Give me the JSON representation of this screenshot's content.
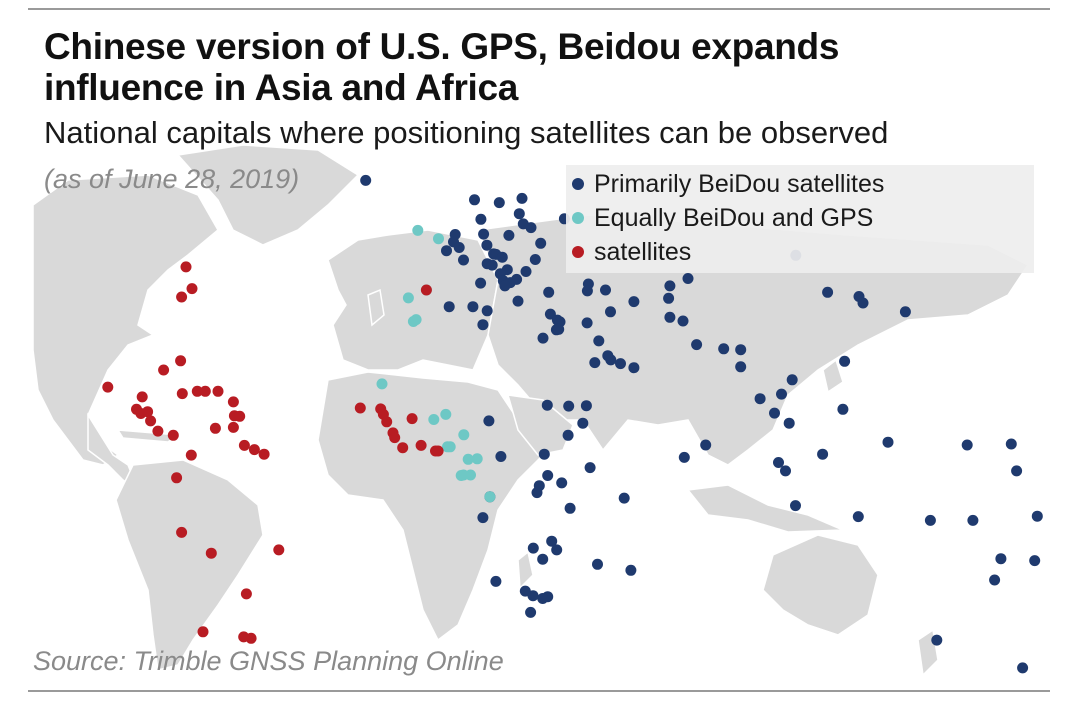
{
  "title": "Chinese version of U.S. GPS, Beidou expands influence in Asia and Africa",
  "subtitle": "National capitals where positioning satellites can be observed",
  "date_note": "(as of June 28, 2019)",
  "source": "Source: Trimble GNSS Planning Online",
  "colors": {
    "beidou": "#1f3a6e",
    "equal": "#6ec8c5",
    "gps": "#b81c23",
    "land": "#d9d9d9",
    "background": "#ffffff"
  },
  "chart_data": {
    "type": "scatter",
    "title": "Chinese version of U.S. GPS, Beidou expands influence in Asia and Africa",
    "subtitle": "National capitals where positioning satellites can be observed",
    "legend_placement": "top-right",
    "series": [
      {
        "name": "Primarily BeiDou satellites",
        "color": "#1f3a6e",
        "points": [
          [
            -21.9,
            64.1
          ],
          [
            10.7,
            59.9
          ],
          [
            18.1,
            59.3
          ],
          [
            24.9,
            60.2
          ],
          [
            37.6,
            55.8
          ],
          [
            12.6,
            55.7
          ],
          [
            24.1,
            56.9
          ],
          [
            25.3,
            54.7
          ],
          [
            27.6,
            53.9
          ],
          [
            21.0,
            52.2
          ],
          [
            13.4,
            52.5
          ],
          [
            4.9,
            52.4
          ],
          [
            4.4,
            50.8
          ],
          [
            6.1,
            49.6
          ],
          [
            2.3,
            48.9
          ],
          [
            7.4,
            46.9
          ],
          [
            14.4,
            50.1
          ],
          [
            16.4,
            48.2
          ],
          [
            17.1,
            48.1
          ],
          [
            19.0,
            47.5
          ],
          [
            14.5,
            46.1
          ],
          [
            16.0,
            45.8
          ],
          [
            20.5,
            44.8
          ],
          [
            26.1,
            44.4
          ],
          [
            30.5,
            50.5
          ],
          [
            28.9,
            47.0
          ],
          [
            18.4,
            43.9
          ],
          [
            19.3,
            42.4
          ],
          [
            21.4,
            42.0
          ],
          [
            19.8,
            41.3
          ],
          [
            23.3,
            42.7
          ],
          [
            12.5,
            41.9
          ],
          [
            14.5,
            35.9
          ],
          [
            10.2,
            36.8
          ],
          [
            3.1,
            36.8
          ],
          [
            13.2,
            32.9
          ],
          [
            23.7,
            38.0
          ],
          [
            33.4,
            35.2
          ],
          [
            32.9,
            39.9
          ],
          [
            35.5,
            33.9
          ],
          [
            36.3,
            33.5
          ],
          [
            35.2,
            31.8
          ],
          [
            35.9,
            31.9
          ],
          [
            31.2,
            30.0
          ],
          [
            44.4,
            33.3
          ],
          [
            44.8,
            41.7
          ],
          [
            44.5,
            40.2
          ],
          [
            49.9,
            40.4
          ],
          [
            58.4,
            37.9
          ],
          [
            69.2,
            41.3
          ],
          [
            74.6,
            42.9
          ],
          [
            68.8,
            38.6
          ],
          [
            69.2,
            34.5
          ],
          [
            73.1,
            33.7
          ],
          [
            77.2,
            28.6
          ],
          [
            85.3,
            27.7
          ],
          [
            90.4,
            27.5
          ],
          [
            90.4,
            23.8
          ],
          [
            51.4,
            35.7
          ],
          [
            47.9,
            29.4
          ],
          [
            50.6,
            26.2
          ],
          [
            51.5,
            25.3
          ],
          [
            54.4,
            24.5
          ],
          [
            58.4,
            23.6
          ],
          [
            46.7,
            24.7
          ],
          [
            44.2,
            15.4
          ],
          [
            43.1,
            11.6
          ],
          [
            38.9,
            15.3
          ],
          [
            32.5,
            15.5
          ],
          [
            38.7,
            9.0
          ],
          [
            45.3,
            2.0
          ],
          [
            36.8,
            -1.3
          ],
          [
            32.6,
            0.3
          ],
          [
            30.1,
            -1.9
          ],
          [
            29.4,
            -3.4
          ],
          [
            39.3,
            -6.8
          ],
          [
            33.8,
            -13.9
          ],
          [
            28.3,
            -15.4
          ],
          [
            35.3,
            -15.8
          ],
          [
            32.6,
            -25.9
          ],
          [
            31.1,
            -17.8
          ],
          [
            25.9,
            -24.7
          ],
          [
            28.2,
            -25.7
          ],
          [
            27.5,
            -29.3
          ],
          [
            31.1,
            -26.3
          ],
          [
            17.1,
            -22.6
          ],
          [
            13.2,
            -8.8
          ],
          [
            15.3,
            -4.3
          ],
          [
            18.6,
            4.4
          ],
          [
            15.0,
            12.1
          ],
          [
            31.6,
            4.9
          ],
          [
            47.5,
            -18.9
          ],
          [
            57.5,
            -20.2
          ],
          [
            55.5,
            -4.6
          ],
          [
            73.5,
            4.2
          ],
          [
            79.9,
            6.9
          ],
          [
            96.2,
            16.9
          ],
          [
            100.5,
            13.8
          ],
          [
            102.6,
            17.9
          ],
          [
            104.9,
            11.6
          ],
          [
            105.8,
            21.0
          ],
          [
            101.7,
            3.1
          ],
          [
            103.8,
            1.3
          ],
          [
            106.8,
            -6.2
          ],
          [
            114.9,
            4.9
          ],
          [
            121.0,
            14.6
          ],
          [
            125.6,
            -8.6
          ],
          [
            147.2,
            -9.4
          ],
          [
            116.4,
            39.9
          ],
          [
            106.9,
            47.9
          ],
          [
            125.8,
            39.0
          ],
          [
            127.0,
            37.6
          ],
          [
            139.7,
            35.7
          ],
          [
            121.5,
            25.0
          ],
          [
            134.5,
            7.5
          ],
          [
            158.2,
            6.9
          ],
          [
            171.4,
            7.1
          ],
          [
            173.0,
            1.3
          ],
          [
            159.9,
            -9.4
          ],
          [
            168.3,
            -17.7
          ],
          [
            166.4,
            -22.3
          ],
          [
            178.4,
            -18.1
          ],
          [
            179.2,
            -8.5
          ],
          [
            -175.2,
            -21.1
          ],
          [
            -171.8,
            -13.8
          ],
          [
            149.1,
            -35.3
          ],
          [
            174.8,
            -41.3
          ]
        ]
      },
      {
        "name": "Equally BeiDou and GPS",
        "color": "#6ec8c5",
        "points": [
          [
            -9.1,
            38.7
          ],
          [
            -3.7,
            40.4
          ],
          [
            -6.3,
            53.3
          ],
          [
            -0.1,
            51.5
          ],
          [
            -6.8,
            34.0
          ],
          [
            -7.6,
            33.6
          ],
          [
            -17.0,
            20.1
          ],
          [
            -1.5,
            12.4
          ],
          [
            2.1,
            13.5
          ],
          [
            2.6,
            6.5
          ],
          [
            3.4,
            6.5
          ],
          [
            7.5,
            9.1
          ],
          [
            11.5,
            3.9
          ],
          [
            8.8,
            3.8
          ],
          [
            9.5,
            0.4
          ],
          [
            6.7,
            0.3
          ],
          [
            15.3,
            -4.3
          ],
          [
            7.4,
            0.4
          ]
        ]
      },
      {
        "name": "satellites",
        "color": "#b81c23",
        "points": [
          [
            -73.9,
            40.7
          ],
          [
            -77.0,
            38.9
          ],
          [
            -75.7,
            45.4
          ],
          [
            -82.4,
            23.1
          ],
          [
            -77.3,
            25.1
          ],
          [
            -76.8,
            18.0
          ],
          [
            -72.3,
            18.5
          ],
          [
            -69.9,
            18.5
          ],
          [
            -66.1,
            18.5
          ],
          [
            -61.5,
            16.2
          ],
          [
            -61.2,
            13.2
          ],
          [
            -59.6,
            13.1
          ],
          [
            -61.5,
            10.7
          ],
          [
            -58.2,
            6.8
          ],
          [
            -55.2,
            5.9
          ],
          [
            -52.3,
            4.9
          ],
          [
            -66.9,
            10.5
          ],
          [
            -74.1,
            4.7
          ],
          [
            -78.5,
            -0.2
          ],
          [
            -77.0,
            -12.0
          ],
          [
            -68.1,
            -16.5
          ],
          [
            -57.6,
            -25.3
          ],
          [
            -56.2,
            -34.9
          ],
          [
            -58.4,
            -34.6
          ],
          [
            -70.6,
            -33.5
          ],
          [
            -47.9,
            -15.8
          ],
          [
            -99.1,
            19.4
          ],
          [
            -90.5,
            14.6
          ],
          [
            -89.2,
            13.7
          ],
          [
            -87.2,
            14.1
          ],
          [
            -86.3,
            12.1
          ],
          [
            -84.1,
            9.9
          ],
          [
            -79.5,
            9.0
          ],
          [
            -88.8,
            17.3
          ],
          [
            -17.4,
            14.7
          ],
          [
            -16.6,
            13.5
          ],
          [
            -15.6,
            11.9
          ],
          [
            -13.7,
            9.5
          ],
          [
            -13.2,
            8.5
          ],
          [
            -10.8,
            6.3
          ],
          [
            -5.3,
            6.8
          ],
          [
            -8.0,
            12.6
          ],
          [
            -1.0,
            5.6
          ],
          [
            -0.2,
            5.6
          ],
          [
            -23.5,
            14.9
          ],
          [
            -3.7,
            40.4
          ]
        ]
      }
    ]
  }
}
